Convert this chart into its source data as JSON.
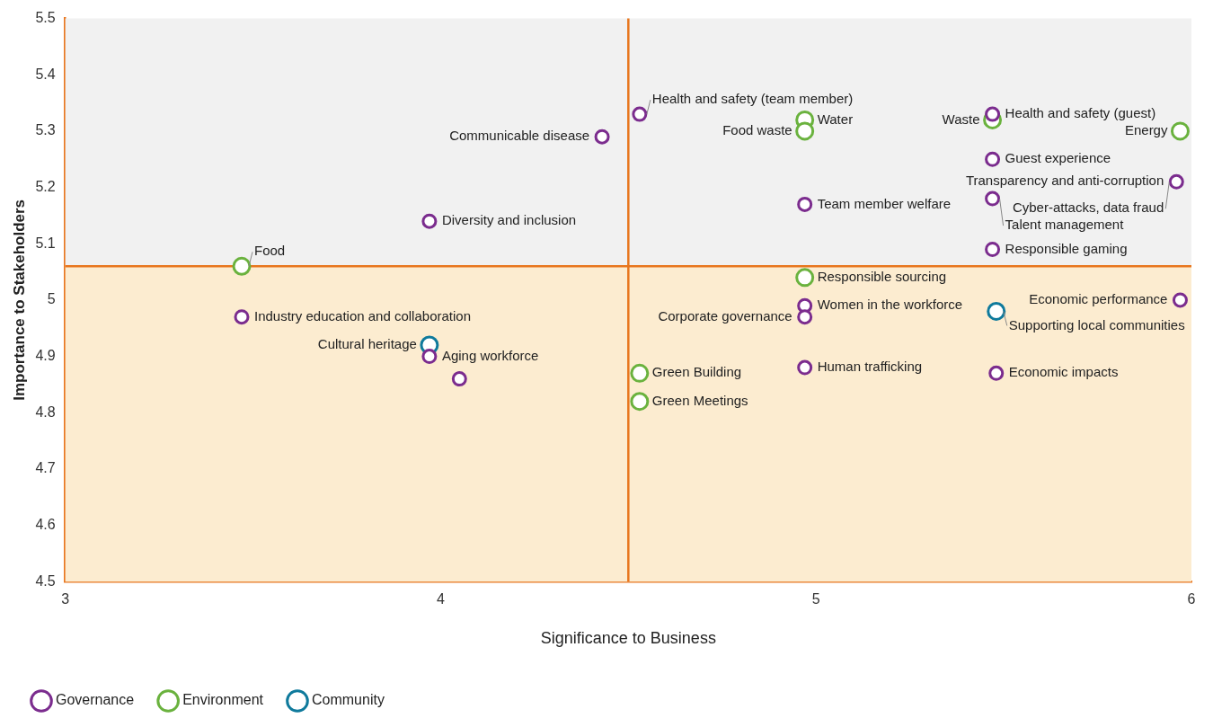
{
  "chart_data": {
    "type": "scatter",
    "xlabel": "Significance to Business",
    "ylabel": "Importance to Stakeholders",
    "xlim": [
      3,
      6
    ],
    "xticks": [
      3,
      4,
      5,
      6
    ],
    "ylim": [
      4.5,
      5.5
    ],
    "yticks": [
      4.5,
      4.6,
      4.7,
      4.8,
      4.9,
      5,
      5.1,
      5.2,
      5.3,
      5.4,
      5.5
    ],
    "grid": false,
    "legend": "bottom left",
    "marker": "circle",
    "ref_lines": [
      {
        "axis": "x",
        "value": 4.5,
        "color": "#e8761e"
      },
      {
        "axis": "y",
        "value": 5.06,
        "color": "#e8761e"
      }
    ],
    "bands": [
      {
        "axis": "y",
        "from": 5.06,
        "to": 5.5,
        "color": "#f1f1f1"
      },
      {
        "axis": "y",
        "from": 4.5,
        "to": 5.06,
        "color": "#fcecd0"
      }
    ],
    "series": [
      {
        "name": "Governance",
        "color": "#7b2c8e",
        "x": [
          4.43,
          4.53,
          5.47,
          5.47,
          5.96,
          4.97,
          5.47,
          5.47,
          5.97,
          3.97,
          3.47,
          3.97,
          4.05,
          4.97,
          4.97,
          4.97,
          5.48
        ],
        "values": [
          5.29,
          5.33,
          5.33,
          5.25,
          5.21,
          5.17,
          5.18,
          5.09,
          5.0,
          5.14,
          4.97,
          4.9,
          4.86,
          4.99,
          4.97,
          4.88,
          4.87
        ]
      },
      {
        "name": "Environment",
        "color": "#6ab23e",
        "x": [
          3.47,
          4.97,
          4.97,
          5.47,
          5.97,
          4.97,
          4.53,
          4.53
        ],
        "values": [
          5.06,
          5.32,
          5.3,
          5.32,
          5.3,
          5.04,
          4.87,
          4.82
        ]
      },
      {
        "name": "Community",
        "color": "#0f7a9c",
        "x": [
          3.97,
          5.48
        ],
        "values": [
          4.92,
          4.98
        ]
      }
    ],
    "annotations": [
      {
        "text": "Communicable disease",
        "x": 4.43,
        "y": 5.29
      },
      {
        "text": "Health and safety (team member)",
        "x": 4.53,
        "y": 5.33
      },
      {
        "text": "Health and safety (guest)",
        "x": 5.47,
        "y": 5.33
      },
      {
        "text": "Guest experience",
        "x": 5.47,
        "y": 5.25
      },
      {
        "text": "Transparency and anti-corruption",
        "x": 5.96,
        "y": 5.21
      },
      {
        "text": "Cyber-attacks, data fraud",
        "x": 5.96,
        "y": 5.21
      },
      {
        "text": "Team member welfare",
        "x": 4.97,
        "y": 5.17
      },
      {
        "text": "Talent management",
        "x": 5.47,
        "y": 5.18
      },
      {
        "text": "Responsible gaming",
        "x": 5.47,
        "y": 5.09
      },
      {
        "text": "Economic performance",
        "x": 5.97,
        "y": 5.0
      },
      {
        "text": "Diversity and inclusion",
        "x": 3.97,
        "y": 5.14
      },
      {
        "text": "Industry education and collaboration",
        "x": 3.47,
        "y": 4.97
      },
      {
        "text": "Aging workforce",
        "x": 3.97,
        "y": 4.9
      },
      {
        "text": "Women in the workforce",
        "x": 4.97,
        "y": 4.99
      },
      {
        "text": "Corporate governance",
        "x": 4.97,
        "y": 4.97
      },
      {
        "text": "Human trafficking",
        "x": 4.97,
        "y": 4.88
      },
      {
        "text": "Economic impacts",
        "x": 5.48,
        "y": 4.87
      },
      {
        "text": "Food",
        "x": 3.47,
        "y": 5.06
      },
      {
        "text": "Water",
        "x": 4.97,
        "y": 5.32
      },
      {
        "text": "Food waste",
        "x": 4.97,
        "y": 5.3
      },
      {
        "text": "Waste",
        "x": 5.47,
        "y": 5.32
      },
      {
        "text": "Energy",
        "x": 5.97,
        "y": 5.3
      },
      {
        "text": "Responsible sourcing",
        "x": 4.97,
        "y": 5.04
      },
      {
        "text": "Green Building",
        "x": 4.53,
        "y": 4.87
      },
      {
        "text": "Green Meetings",
        "x": 4.53,
        "y": 4.82
      },
      {
        "text": "Cultural heritage",
        "x": 3.97,
        "y": 4.92
      },
      {
        "text": "Supporting local communities",
        "x": 5.48,
        "y": 4.98
      }
    ]
  }
}
